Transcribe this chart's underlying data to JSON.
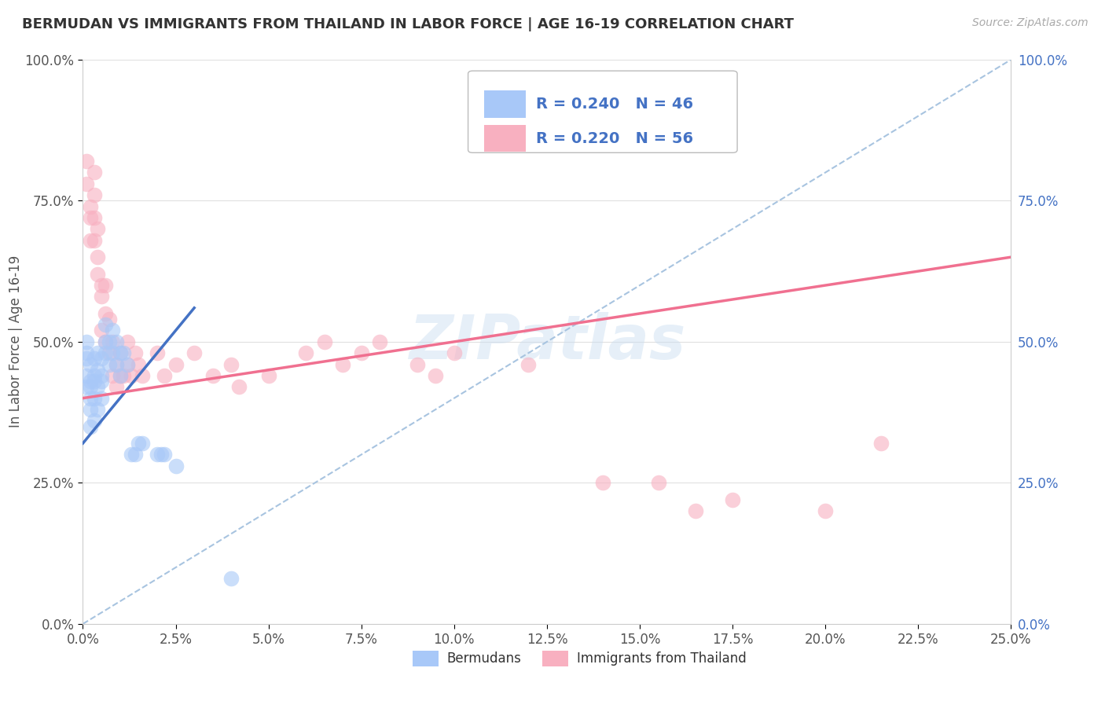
{
  "title": "BERMUDAN VS IMMIGRANTS FROM THAILAND IN LABOR FORCE | AGE 16-19 CORRELATION CHART",
  "source": "Source: ZipAtlas.com",
  "ylabel": "In Labor Force | Age 16-19",
  "xmin": 0.0,
  "xmax": 0.25,
  "ymin": 0.0,
  "ymax": 1.0,
  "bermudan_R": 0.24,
  "bermudan_N": 46,
  "thailand_R": 0.22,
  "thailand_N": 56,
  "bermudan_color": "#a8c8f8",
  "thailand_color": "#f8b0c0",
  "bermudan_line_color": "#4472c4",
  "thailand_line_color": "#f07090",
  "diagonal_color": "#a8c4e0",
  "watermark": "ZIPatlas",
  "bermudan_x": [
    0.001,
    0.001,
    0.001,
    0.001,
    0.001,
    0.002,
    0.002,
    0.002,
    0.002,
    0.002,
    0.002,
    0.003,
    0.003,
    0.003,
    0.003,
    0.003,
    0.004,
    0.004,
    0.004,
    0.004,
    0.005,
    0.005,
    0.005,
    0.005,
    0.006,
    0.006,
    0.006,
    0.007,
    0.007,
    0.008,
    0.008,
    0.009,
    0.009,
    0.01,
    0.01,
    0.011,
    0.012,
    0.013,
    0.014,
    0.015,
    0.016,
    0.02,
    0.021,
    0.022,
    0.025,
    0.04
  ],
  "bermudan_y": [
    0.42,
    0.47,
    0.5,
    0.44,
    0.48,
    0.43,
    0.46,
    0.42,
    0.38,
    0.4,
    0.35,
    0.44,
    0.47,
    0.4,
    0.43,
    0.36,
    0.45,
    0.48,
    0.42,
    0.38,
    0.44,
    0.47,
    0.4,
    0.43,
    0.5,
    0.53,
    0.48,
    0.5,
    0.46,
    0.52,
    0.48,
    0.46,
    0.5,
    0.48,
    0.44,
    0.48,
    0.46,
    0.3,
    0.3,
    0.32,
    0.32,
    0.3,
    0.3,
    0.3,
    0.28,
    0.08
  ],
  "thailand_x": [
    0.001,
    0.001,
    0.002,
    0.002,
    0.002,
    0.003,
    0.003,
    0.003,
    0.003,
    0.004,
    0.004,
    0.004,
    0.005,
    0.005,
    0.005,
    0.006,
    0.006,
    0.006,
    0.007,
    0.007,
    0.008,
    0.008,
    0.009,
    0.009,
    0.01,
    0.01,
    0.011,
    0.012,
    0.012,
    0.013,
    0.014,
    0.015,
    0.016,
    0.02,
    0.022,
    0.025,
    0.03,
    0.035,
    0.04,
    0.042,
    0.05,
    0.06,
    0.065,
    0.07,
    0.075,
    0.08,
    0.09,
    0.095,
    0.1,
    0.12,
    0.14,
    0.155,
    0.165,
    0.175,
    0.2,
    0.215
  ],
  "thailand_y": [
    0.82,
    0.78,
    0.72,
    0.68,
    0.74,
    0.8,
    0.68,
    0.72,
    0.76,
    0.65,
    0.62,
    0.7,
    0.58,
    0.52,
    0.6,
    0.5,
    0.55,
    0.6,
    0.48,
    0.54,
    0.44,
    0.5,
    0.42,
    0.46,
    0.44,
    0.48,
    0.44,
    0.46,
    0.5,
    0.44,
    0.48,
    0.46,
    0.44,
    0.48,
    0.44,
    0.46,
    0.48,
    0.44,
    0.46,
    0.42,
    0.44,
    0.48,
    0.5,
    0.46,
    0.48,
    0.5,
    0.46,
    0.44,
    0.48,
    0.46,
    0.25,
    0.25,
    0.2,
    0.22,
    0.2,
    0.32
  ],
  "bermudan_line_x0": 0.0,
  "bermudan_line_y0": 0.32,
  "bermudan_line_x1": 0.03,
  "bermudan_line_y1": 0.56,
  "thailand_line_x0": 0.0,
  "thailand_line_y0": 0.4,
  "thailand_line_x1": 0.25,
  "thailand_line_y1": 0.65
}
